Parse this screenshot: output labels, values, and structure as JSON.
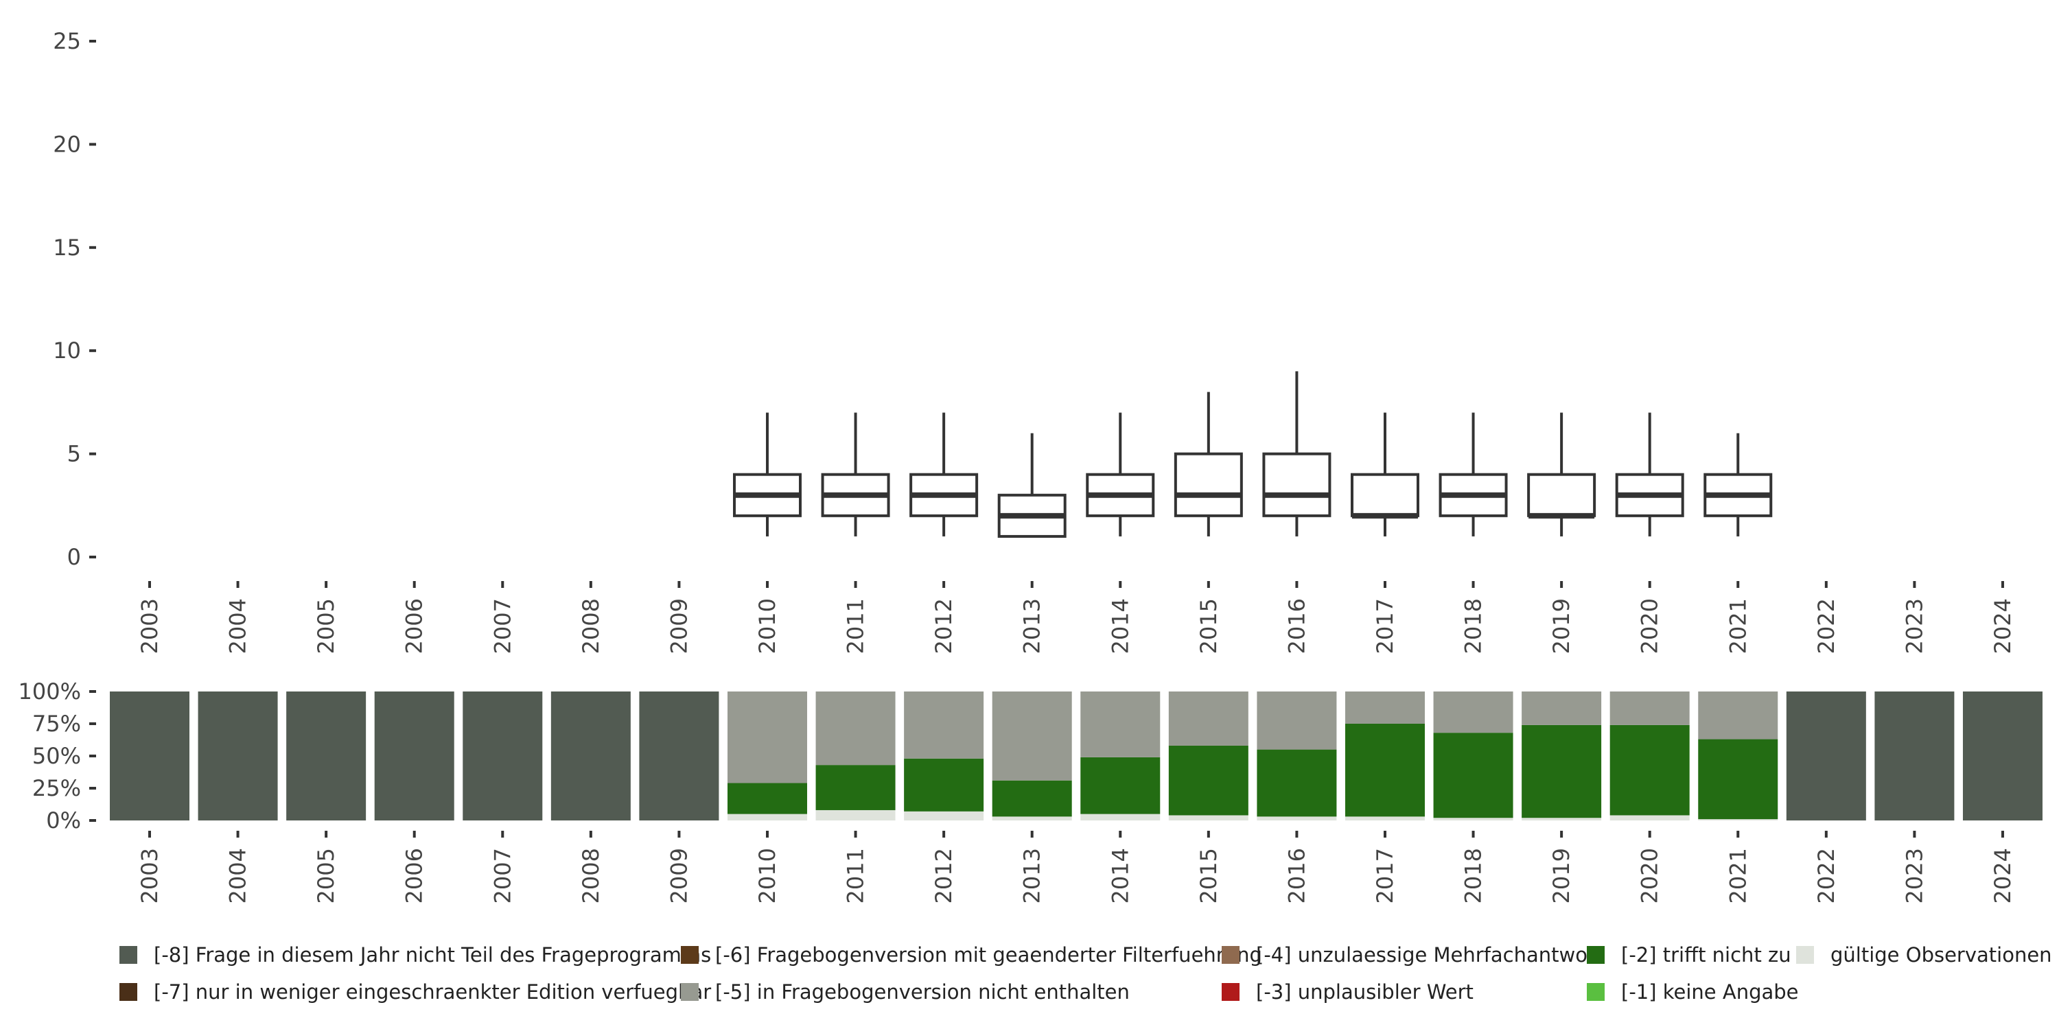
{
  "chart_data": [
    {
      "type": "boxplot",
      "title": "",
      "xlabel": "",
      "ylabel": "",
      "ylim": [
        0,
        25
      ],
      "y_ticks": [
        "0",
        "5",
        "10",
        "15",
        "20",
        "25"
      ],
      "categories": [
        "2003",
        "2004",
        "2005",
        "2006",
        "2007",
        "2008",
        "2009",
        "2010",
        "2011",
        "2012",
        "2013",
        "2014",
        "2015",
        "2016",
        "2017",
        "2018",
        "2019",
        "2020",
        "2021",
        "2022",
        "2023",
        "2024"
      ],
      "boxes": [
        {
          "year": "2010",
          "min": 1,
          "q1": 2,
          "median": 3,
          "q3": 4,
          "max": 7
        },
        {
          "year": "2011",
          "min": 1,
          "q1": 2,
          "median": 3,
          "q3": 4,
          "max": 7
        },
        {
          "year": "2012",
          "min": 1,
          "q1": 2,
          "median": 3,
          "q3": 4,
          "max": 7
        },
        {
          "year": "2013",
          "min": 1,
          "q1": 1,
          "median": 2,
          "q3": 3,
          "max": 6
        },
        {
          "year": "2014",
          "min": 1,
          "q1": 2,
          "median": 3,
          "q3": 4,
          "max": 7
        },
        {
          "year": "2015",
          "min": 1,
          "q1": 2,
          "median": 3,
          "q3": 5,
          "max": 8
        },
        {
          "year": "2016",
          "min": 1,
          "q1": 2,
          "median": 3,
          "q3": 5,
          "max": 9
        },
        {
          "year": "2017",
          "min": 1,
          "q1": 2,
          "median": 2,
          "q3": 4,
          "max": 7
        },
        {
          "year": "2018",
          "min": 1,
          "q1": 2,
          "median": 3,
          "q3": 4,
          "max": 7
        },
        {
          "year": "2019",
          "min": 1,
          "q1": 2,
          "median": 2,
          "q3": 4,
          "max": 7
        },
        {
          "year": "2020",
          "min": 1,
          "q1": 2,
          "median": 3,
          "q3": 4,
          "max": 7
        },
        {
          "year": "2021",
          "min": 1,
          "q1": 2,
          "median": 3,
          "q3": 4,
          "max": 6
        }
      ]
    },
    {
      "type": "stacked_bar",
      "title": "",
      "ylim": [
        0,
        100
      ],
      "y_ticks": [
        "0%",
        "25%",
        "50%",
        "75%",
        "100%"
      ],
      "categories": [
        "2003",
        "2004",
        "2005",
        "2006",
        "2007",
        "2008",
        "2009",
        "2010",
        "2011",
        "2012",
        "2013",
        "2014",
        "2015",
        "2016",
        "2017",
        "2018",
        "2019",
        "2020",
        "2021",
        "2022",
        "2023",
        "2024"
      ],
      "series": [
        {
          "name": "gültige Observationen",
          "color": "#dfe3dc",
          "values": [
            0,
            0,
            0,
            0,
            0,
            0,
            0,
            5,
            8,
            7,
            3,
            5,
            4,
            3,
            3,
            2,
            2,
            4,
            1,
            0,
            0,
            0
          ]
        },
        {
          "name": "[-2] trifft nicht zu",
          "color": "#236c13",
          "values": [
            0,
            0,
            0,
            0,
            0,
            0,
            0,
            24,
            35,
            41,
            28,
            44,
            54,
            52,
            72,
            66,
            72,
            70,
            62,
            0,
            0,
            0
          ]
        },
        {
          "name": "[-5] in Fragebogenversion nicht enthalten",
          "color": "#979a91",
          "values": [
            0,
            0,
            0,
            0,
            0,
            0,
            0,
            71,
            57,
            52,
            69,
            51,
            42,
            45,
            25,
            32,
            26,
            26,
            37,
            0,
            0,
            0
          ]
        },
        {
          "name": "[-8] Frage in diesem Jahr nicht Teil des Frageprogramms",
          "color": "#525b52",
          "values": [
            100,
            100,
            100,
            100,
            100,
            100,
            100,
            0,
            0,
            0,
            0,
            0,
            0,
            0,
            0,
            0,
            0,
            0,
            0,
            100,
            100,
            100
          ]
        }
      ]
    }
  ],
  "legend": [
    {
      "label": "[-8] Frage in diesem Jahr nicht Teil des Frageprogramms",
      "color": "#525b52"
    },
    {
      "label": "[-7] nur in weniger eingeschraenkter Edition verfuegbar",
      "color": "#4a2f18"
    },
    {
      "label": "[-6] Fragebogenversion mit geaenderter Filterfuehrung",
      "color": "#5c3a1a"
    },
    {
      "label": "[-5] in Fragebogenversion nicht enthalten",
      "color": "#979a91"
    },
    {
      "label": "[-4] unzulaessige Mehrfachantwort",
      "color": "#8f6a4f"
    },
    {
      "label": "[-3] unplausibler Wert",
      "color": "#b01a1a"
    },
    {
      "label": "[-2] trifft nicht zu",
      "color": "#236c13"
    },
    {
      "label": "[-1] keine Angabe",
      "color": "#5abf40"
    },
    {
      "label": "gültige Observationen",
      "color": "#dfe3dc"
    }
  ]
}
